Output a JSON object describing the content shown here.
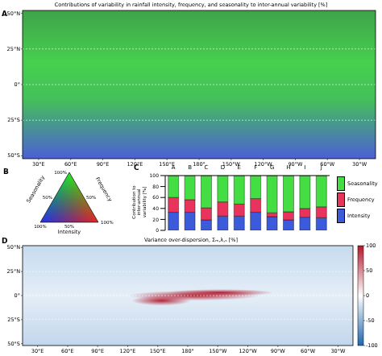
{
  "chart_data": [
    {
      "type": "map",
      "letter": "A",
      "title": "Contributions of variability in rainfall intensity, frequency, and seasonality to inter-annual variability [%]",
      "lat_lim": [
        -52,
        52
      ],
      "lat_ticks": [
        {
          "value": -50,
          "label": "50°S"
        },
        {
          "value": -25,
          "label": "25°S"
        },
        {
          "value": 0,
          "label": "0°"
        },
        {
          "value": 25,
          "label": "25°N"
        },
        {
          "value": 50,
          "label": "50°N"
        }
      ],
      "lon_lim": [
        15,
        345
      ],
      "lon_ticks": [
        {
          "value": 30,
          "label": "30°E"
        },
        {
          "value": 60,
          "label": "60°E"
        },
        {
          "value": 90,
          "label": "90°E"
        },
        {
          "value": 120,
          "label": "120°E"
        },
        {
          "value": 150,
          "label": "150°E"
        },
        {
          "value": 180,
          "label": "180°"
        },
        {
          "value": 210,
          "label": "150°W"
        },
        {
          "value": 240,
          "label": "120°W"
        },
        {
          "value": 270,
          "label": "90°W"
        },
        {
          "value": 300,
          "label": "60°W"
        },
        {
          "value": 330,
          "label": "30°W"
        }
      ]
    },
    {
      "type": "ternary",
      "letter": "B",
      "axes": [
        {
          "label": "Seasonality",
          "color": "#22ee22",
          "ticks": [
            {
              "value": 50,
              "label": "50%"
            },
            {
              "value": 100,
              "label": "100%"
            }
          ]
        },
        {
          "label": "Frequency",
          "color": "#ee2222",
          "ticks": [
            {
              "value": 50,
              "label": "50%"
            },
            {
              "value": 100,
              "label": "100%"
            }
          ]
        },
        {
          "label": "Intensity",
          "color": "#2233ee",
          "ticks": [
            {
              "value": 50,
              "label": "50%"
            },
            {
              "value": 100,
              "label": "100%"
            }
          ]
        }
      ]
    },
    {
      "type": "bar",
      "letter": "C",
      "stacked": true,
      "grid": false,
      "categories": [
        "A",
        "B",
        "C",
        "D",
        "E",
        "F",
        "G",
        "H",
        "I",
        "J"
      ],
      "ylabel": "Contribution to inter-annual variability [%]",
      "ylim": [
        0,
        100
      ],
      "yticks": [
        0,
        20,
        40,
        60,
        80,
        100
      ],
      "legend": "right",
      "series": [
        {
          "name": "Intensity",
          "color": "#3b5bdb",
          "values": [
            33,
            33,
            19,
            26,
            26,
            33,
            25,
            19,
            24,
            23
          ]
        },
        {
          "name": "Frequency",
          "color": "#e8335c",
          "values": [
            27,
            23,
            22,
            26,
            22,
            25,
            7,
            15,
            16,
            20
          ]
        },
        {
          "name": "Seasonality",
          "color": "#44dd44",
          "values": [
            40,
            44,
            59,
            48,
            52,
            42,
            68,
            66,
            60,
            57
          ]
        }
      ]
    },
    {
      "type": "map",
      "letter": "D",
      "title": "Variance over-dispersion, Σₘ,λ,ₛ [%]",
      "lat_lim": [
        -52,
        52
      ],
      "lat_ticks": [
        {
          "value": -50,
          "label": "50°S"
        },
        {
          "value": -25,
          "label": "25°S"
        },
        {
          "value": 0,
          "label": "0°"
        },
        {
          "value": 25,
          "label": "25°N"
        },
        {
          "value": 50,
          "label": "50°N"
        }
      ],
      "lon_lim": [
        15,
        345
      ],
      "lon_ticks": [
        {
          "value": 30,
          "label": "30°E"
        },
        {
          "value": 60,
          "label": "60°E"
        },
        {
          "value": 90,
          "label": "90°E"
        },
        {
          "value": 120,
          "label": "120°E"
        },
        {
          "value": 150,
          "label": "150°E"
        },
        {
          "value": 180,
          "label": "180°"
        },
        {
          "value": 210,
          "label": "150°W"
        },
        {
          "value": 240,
          "label": "120°W"
        },
        {
          "value": 270,
          "label": "90°W"
        },
        {
          "value": 300,
          "label": "60°W"
        },
        {
          "value": 330,
          "label": "30°W"
        }
      ],
      "colorbar": {
        "lim": [
          -100,
          100
        ],
        "ticks": [
          100,
          50,
          0,
          -50,
          -100
        ]
      }
    }
  ]
}
